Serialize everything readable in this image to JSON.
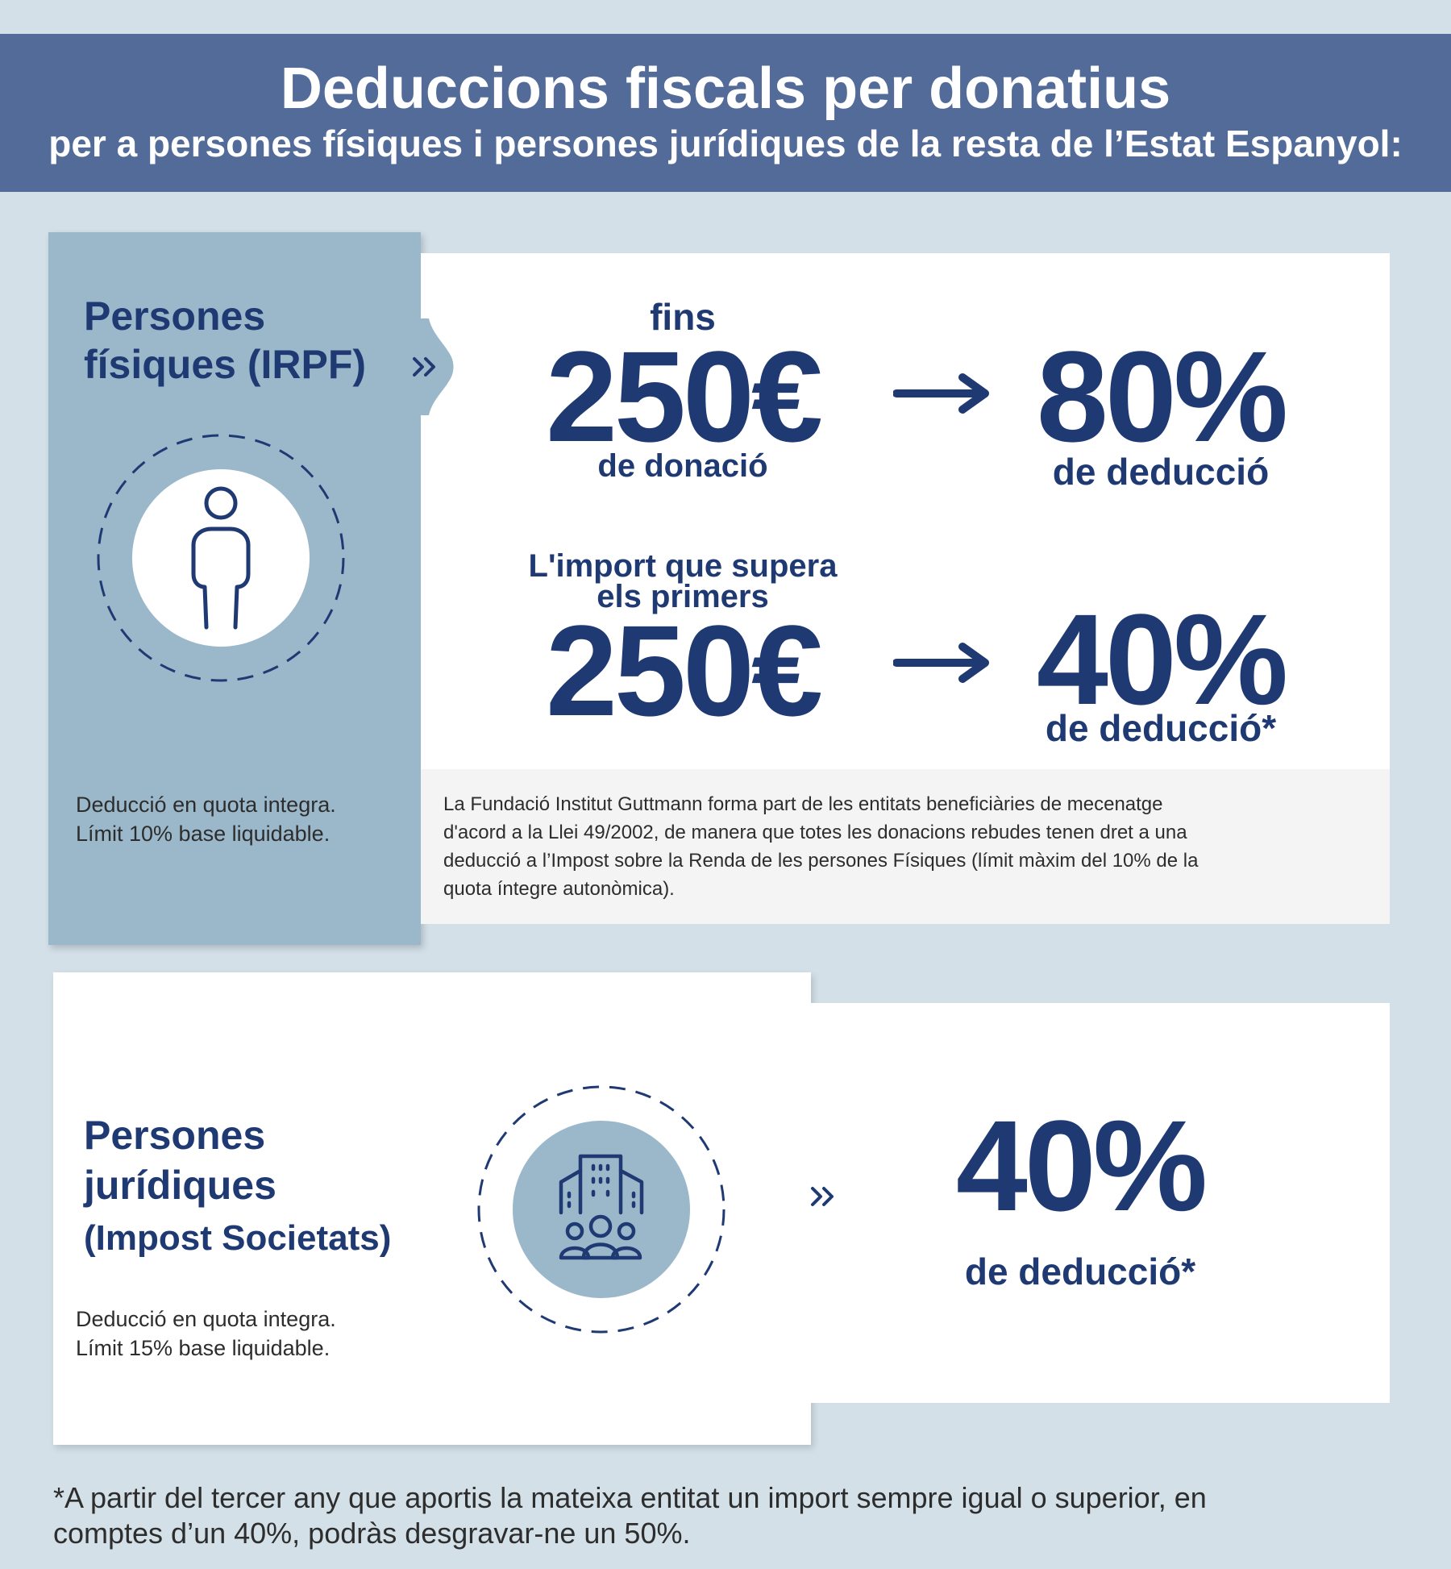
{
  "header": {
    "title": "Deduccions fiscals per donatius",
    "subtitle": "per a persones físiques i persones jurídiques de la resta de l’Estat Espanyol:"
  },
  "section_fisiques": {
    "title_line1": "Persones",
    "title_line2": "físiques (IRPF)",
    "icon": "person-icon",
    "note_line1": "Deducció en quota integra.",
    "note_line2": "Límit 10% base liquidable.",
    "tier1": {
      "prefix": "fins",
      "amount": "250€",
      "amount_label": "de donació",
      "percent": "80%",
      "percent_label": "de deducció"
    },
    "tier2": {
      "prefix_line1": "L'import que supera",
      "prefix_line2": "els primers",
      "amount": "250€",
      "percent": "40%",
      "percent_label": "de deducció*"
    },
    "legal_lines": [
      "La Fundació Institut Guttmann forma part de les entitats beneficiàries de mecenatge",
      "d'acord a la Llei 49/2002, de manera que totes les donacions rebudes tenen dret a una",
      "deducció a l’Impost sobre la Renda de les persones Físiques (límit màxim del 10% de la",
      "quota íntegre autonòmica)."
    ]
  },
  "section_juridiques": {
    "title_line1": "Persones",
    "title_line2": "jurídiques",
    "title_line3": "(Impost Societats)",
    "icon": "building-people-icon",
    "note_line1": "Deducció en quota integra.",
    "note_line2": "Límit 15% base liquidable.",
    "percent": "40%",
    "percent_label": "de deducció*"
  },
  "footnote_line1": "*A partir del tercer any que aportis la mateixa entitat un import sempre igual o superior, en",
  "footnote_line2": "comptes d’un 40%, podràs desgravar-ne un 50%.",
  "colors": {
    "header_bg": "#526b98",
    "page_bg": "#d3e0e8",
    "panel_blue": "#9bb8ca",
    "text_navy": "#1f3a73"
  }
}
